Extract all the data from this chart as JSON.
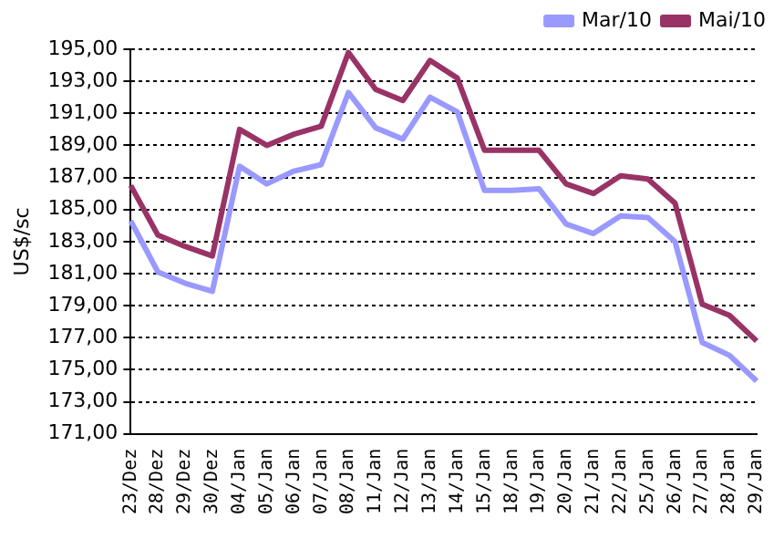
{
  "chart_data": {
    "type": "line",
    "ylabel": "US$/sc",
    "categories": [
      "23/Dez",
      "28/Dez",
      "29/Dez",
      "30/Dez",
      "04/Jan",
      "05/Jan",
      "06/Jan",
      "07/Jan",
      "08/Jan",
      "11/Jan",
      "12/Jan",
      "13/Jan",
      "14/Jan",
      "15/Jan",
      "18/Jan",
      "19/Jan",
      "20/Jan",
      "21/Jan",
      "22/Jan",
      "25/Jan",
      "26/Jan",
      "27/Jan",
      "28/Jan",
      "29/Jan"
    ],
    "series": [
      {
        "name": "Mar/10",
        "color": "#9999ff",
        "values": [
          184.3,
          181.1,
          180.4,
          179.9,
          187.7,
          186.6,
          187.4,
          187.8,
          192.3,
          190.1,
          189.4,
          192.0,
          191.1,
          186.2,
          186.2,
          186.3,
          184.1,
          183.5,
          184.6,
          184.5,
          183.0,
          176.7,
          175.9,
          174.3
        ]
      },
      {
        "name": "Mai/10",
        "color": "#993366",
        "values": [
          186.5,
          183.4,
          182.7,
          182.1,
          190.0,
          189.0,
          189.7,
          190.2,
          194.8,
          192.5,
          191.8,
          194.3,
          193.2,
          188.7,
          188.7,
          188.7,
          186.6,
          186.0,
          187.1,
          186.9,
          185.4,
          179.1,
          178.4,
          176.8
        ]
      }
    ],
    "ylim": [
      171,
      195
    ],
    "yticks": [
      {
        "value": 171,
        "label": "171,00"
      },
      {
        "value": 173,
        "label": "173,00"
      },
      {
        "value": 175,
        "label": "175,00"
      },
      {
        "value": 177,
        "label": "177,00"
      },
      {
        "value": 179,
        "label": "179,00"
      },
      {
        "value": 181,
        "label": "181,00"
      },
      {
        "value": 183,
        "label": "183,00"
      },
      {
        "value": 185,
        "label": "185,00"
      },
      {
        "value": 187,
        "label": "187,00"
      },
      {
        "value": 189,
        "label": "189,00"
      },
      {
        "value": 191,
        "label": "191,00"
      },
      {
        "value": 193,
        "label": "193,00"
      },
      {
        "value": 195,
        "label": "195,00"
      }
    ],
    "grid": "y",
    "legend": "top right",
    "marker": "none",
    "line_style": "solid"
  }
}
